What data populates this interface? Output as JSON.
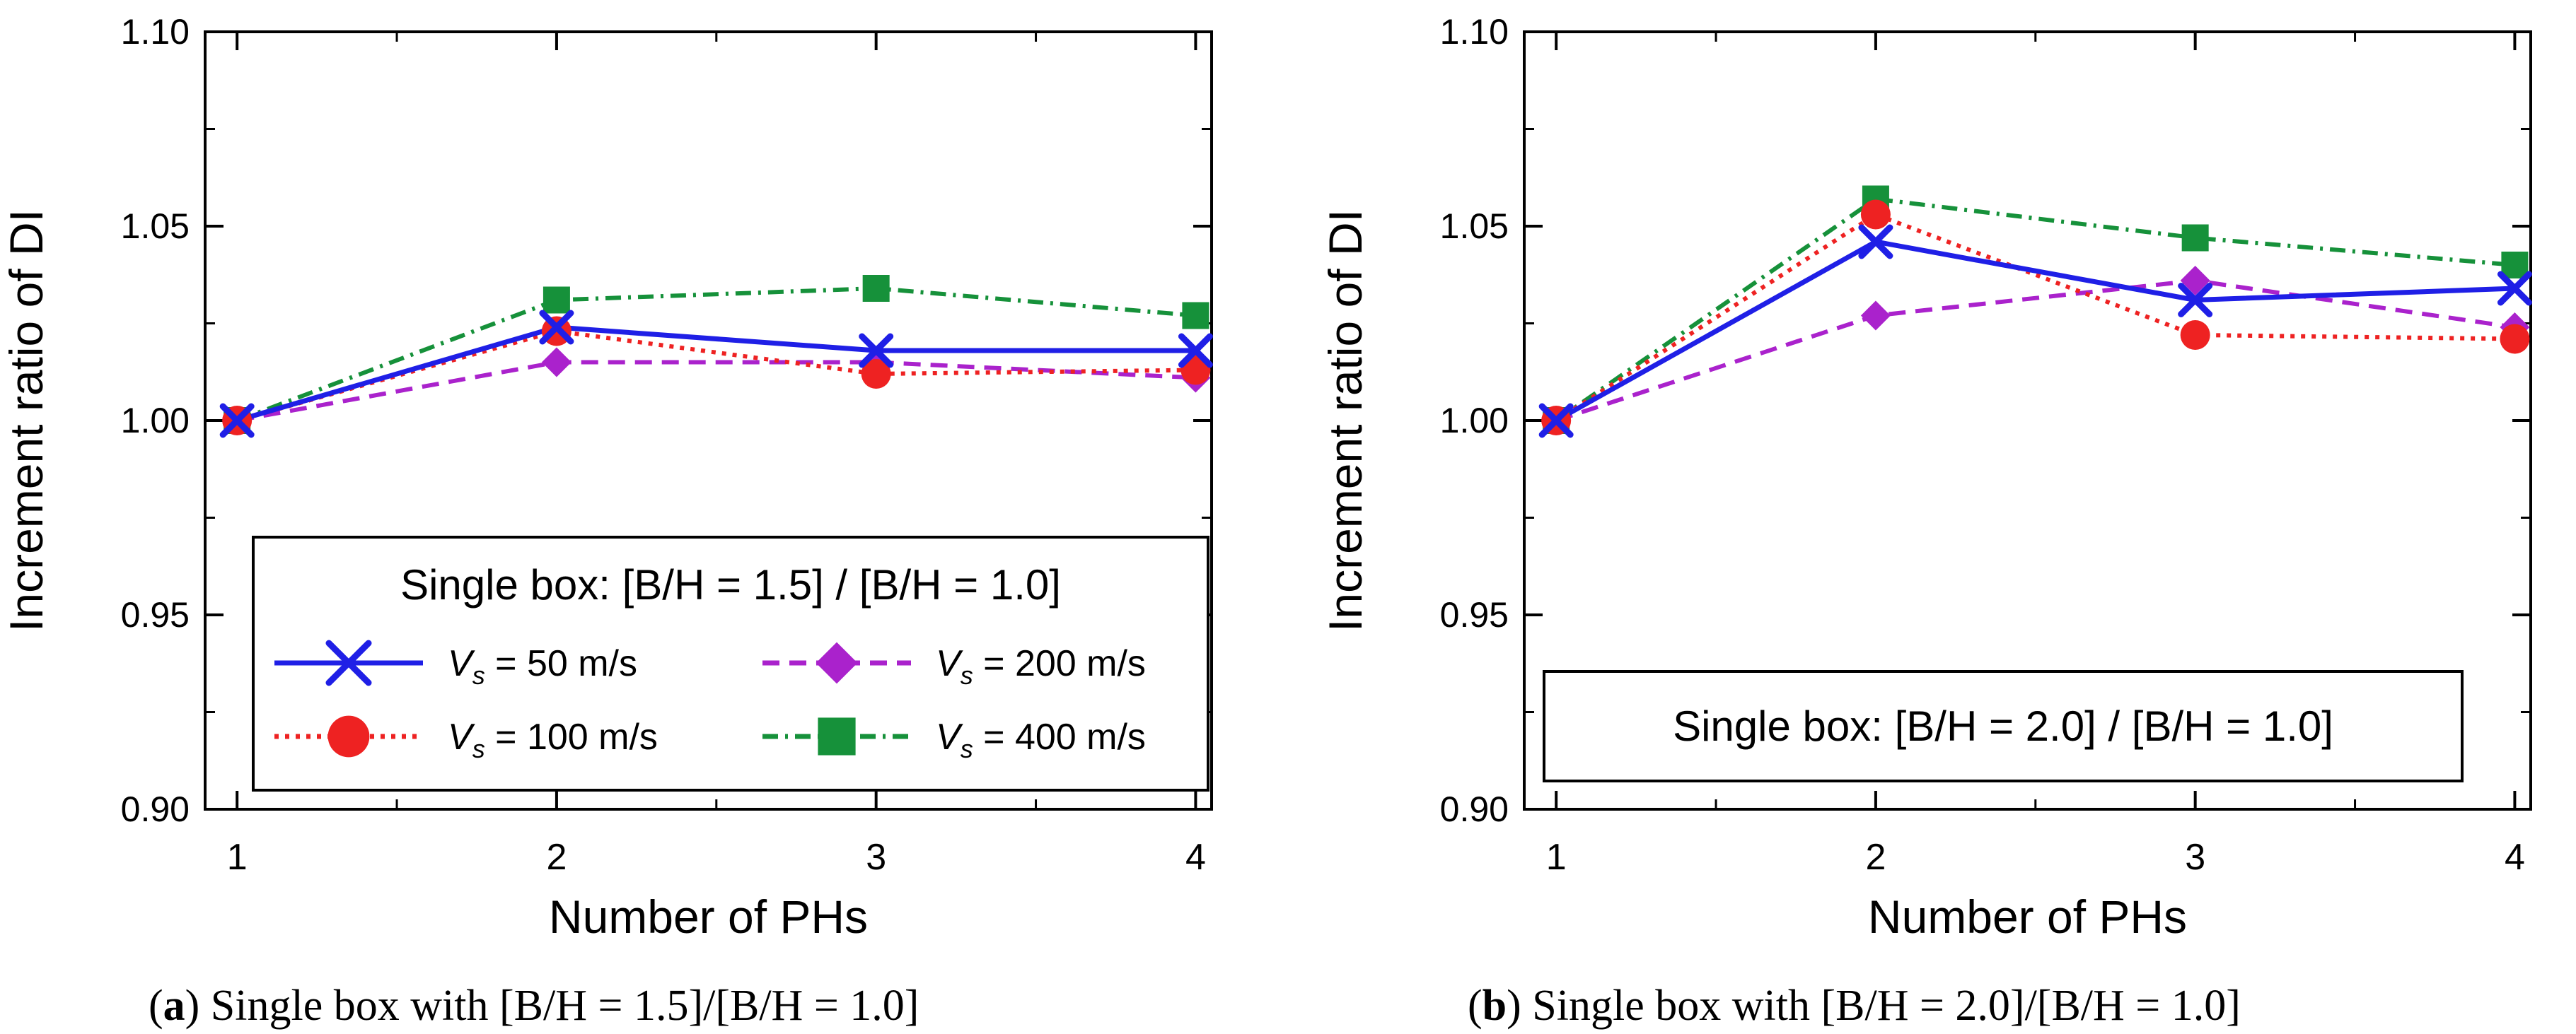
{
  "colors": {
    "axis": "#000000",
    "background": "#ffffff",
    "vs50": "#1f1fe6",
    "vs100": "#ee2222",
    "vs200": "#aa22cc",
    "vs400": "#16913a"
  },
  "panels": [
    {
      "caption_letter": "a",
      "caption_text": ") Single box with [B/H = 1.5]/[B/H = 1.0]",
      "caption_open": "(",
      "legend_title": "Single box: [B/H = 1.5] / [B/H = 1.0]",
      "legend_style": "full"
    },
    {
      "caption_letter": "b",
      "caption_text": ") Single box with [B/H = 2.0]/[B/H = 1.0]",
      "caption_open": "(",
      "legend_title": "Single box: [B/H = 2.0] / [B/H = 1.0]",
      "legend_style": "title-only"
    }
  ],
  "legend_entries": [
    {
      "prefix": "V",
      "sub": "s",
      "suffix": " = 50 m/s"
    },
    {
      "prefix": "V",
      "sub": "s",
      "suffix": " = 100 m/s"
    },
    {
      "prefix": "V",
      "sub": "s",
      "suffix": " = 200 m/s"
    },
    {
      "prefix": "V",
      "sub": "s",
      "suffix": " = 400 m/s"
    }
  ],
  "chart_data": [
    {
      "type": "line",
      "xlabel": "Number of PHs",
      "ylabel": "Increment ratio of DI",
      "x": [
        1,
        2,
        3,
        4
      ],
      "xticks": [
        "1",
        "2",
        "3",
        "4"
      ],
      "xlim": [
        0.9,
        4.05
      ],
      "ylim": [
        0.9,
        1.1
      ],
      "yticks": [
        "0.90",
        "0.95",
        "1.00",
        "1.05",
        "1.10"
      ],
      "legend_placement": "lower-center",
      "series": [
        {
          "name": "Vs = 50 m/s",
          "values": [
            1.0,
            1.024,
            1.018,
            1.018
          ],
          "marker": "x",
          "line": "solid"
        },
        {
          "name": "Vs = 100 m/s",
          "values": [
            1.0,
            1.023,
            1.012,
            1.013
          ],
          "marker": "circle",
          "line": "dotted"
        },
        {
          "name": "Vs = 200 m/s",
          "values": [
            1.0,
            1.015,
            1.015,
            1.011
          ],
          "marker": "diamond",
          "line": "dashed"
        },
        {
          "name": "Vs = 400 m/s",
          "values": [
            1.0,
            1.031,
            1.034,
            1.027
          ],
          "marker": "square",
          "line": "dashdot"
        }
      ]
    },
    {
      "type": "line",
      "xlabel": "Number of PHs",
      "ylabel": "Increment ratio of DI",
      "x": [
        1,
        2,
        3,
        4
      ],
      "xticks": [
        "1",
        "2",
        "3",
        "4"
      ],
      "xlim": [
        0.9,
        4.05
      ],
      "ylim": [
        0.9,
        1.1
      ],
      "yticks": [
        "0.90",
        "0.95",
        "1.00",
        "1.05",
        "1.10"
      ],
      "legend_placement": "lower-center",
      "series": [
        {
          "name": "Vs = 50 m/s",
          "values": [
            1.0,
            1.046,
            1.031,
            1.034
          ],
          "marker": "x",
          "line": "solid"
        },
        {
          "name": "Vs = 100 m/s",
          "values": [
            1.0,
            1.053,
            1.022,
            1.021
          ],
          "marker": "circle",
          "line": "dotted"
        },
        {
          "name": "Vs = 200 m/s",
          "values": [
            1.0,
            1.027,
            1.036,
            1.024
          ],
          "marker": "diamond",
          "line": "dashed"
        },
        {
          "name": "Vs = 400 m/s",
          "values": [
            1.0,
            1.057,
            1.047,
            1.04
          ],
          "marker": "square",
          "line": "dashdot"
        }
      ]
    }
  ]
}
